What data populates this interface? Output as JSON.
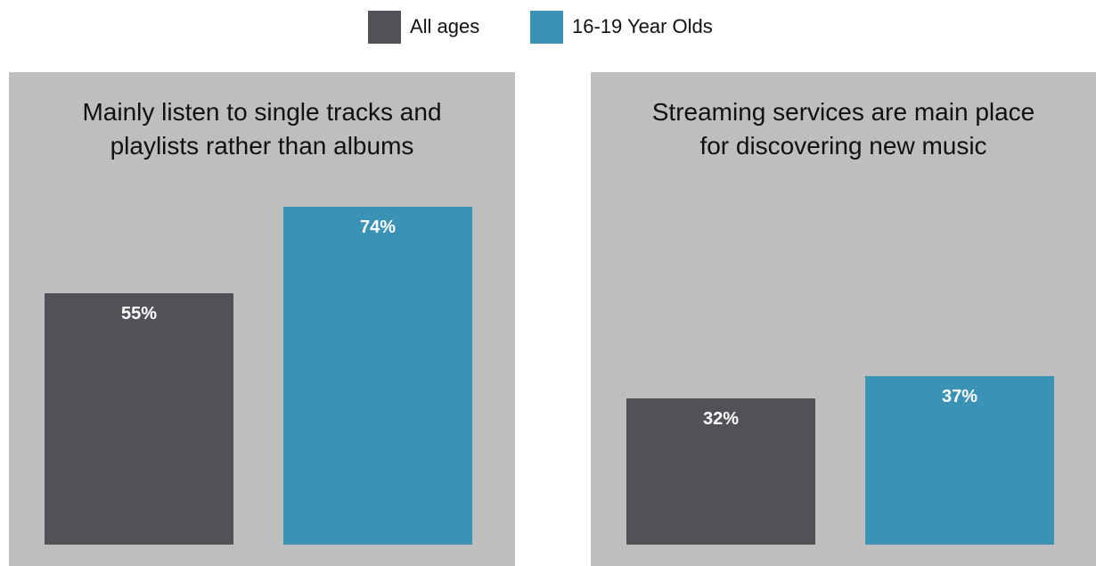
{
  "legend": [
    {
      "label": "All ages",
      "color": "#535158"
    },
    {
      "label": "16-19 Year Olds",
      "color": "#3a92b5"
    }
  ],
  "chart_data": [
    {
      "type": "bar",
      "title": "Mainly listen to single tracks and\nplaylists rather than albums",
      "series": [
        {
          "name": "All ages",
          "values": [
            55
          ],
          "labels": [
            "55%"
          ]
        },
        {
          "name": "16-19 Year Olds",
          "values": [
            74
          ],
          "labels": [
            "74%"
          ]
        }
      ],
      "unit": "%",
      "grid": false,
      "legend_position": "top-center"
    },
    {
      "type": "bar",
      "title": "Streaming services are main place\nfor discovering new music",
      "series": [
        {
          "name": "All ages",
          "values": [
            32
          ],
          "labels": [
            "32%"
          ]
        },
        {
          "name": "16-19 Year Olds",
          "values": [
            37
          ],
          "labels": [
            "37%"
          ]
        }
      ],
      "unit": "%",
      "grid": false,
      "legend_position": "top-center"
    }
  ]
}
